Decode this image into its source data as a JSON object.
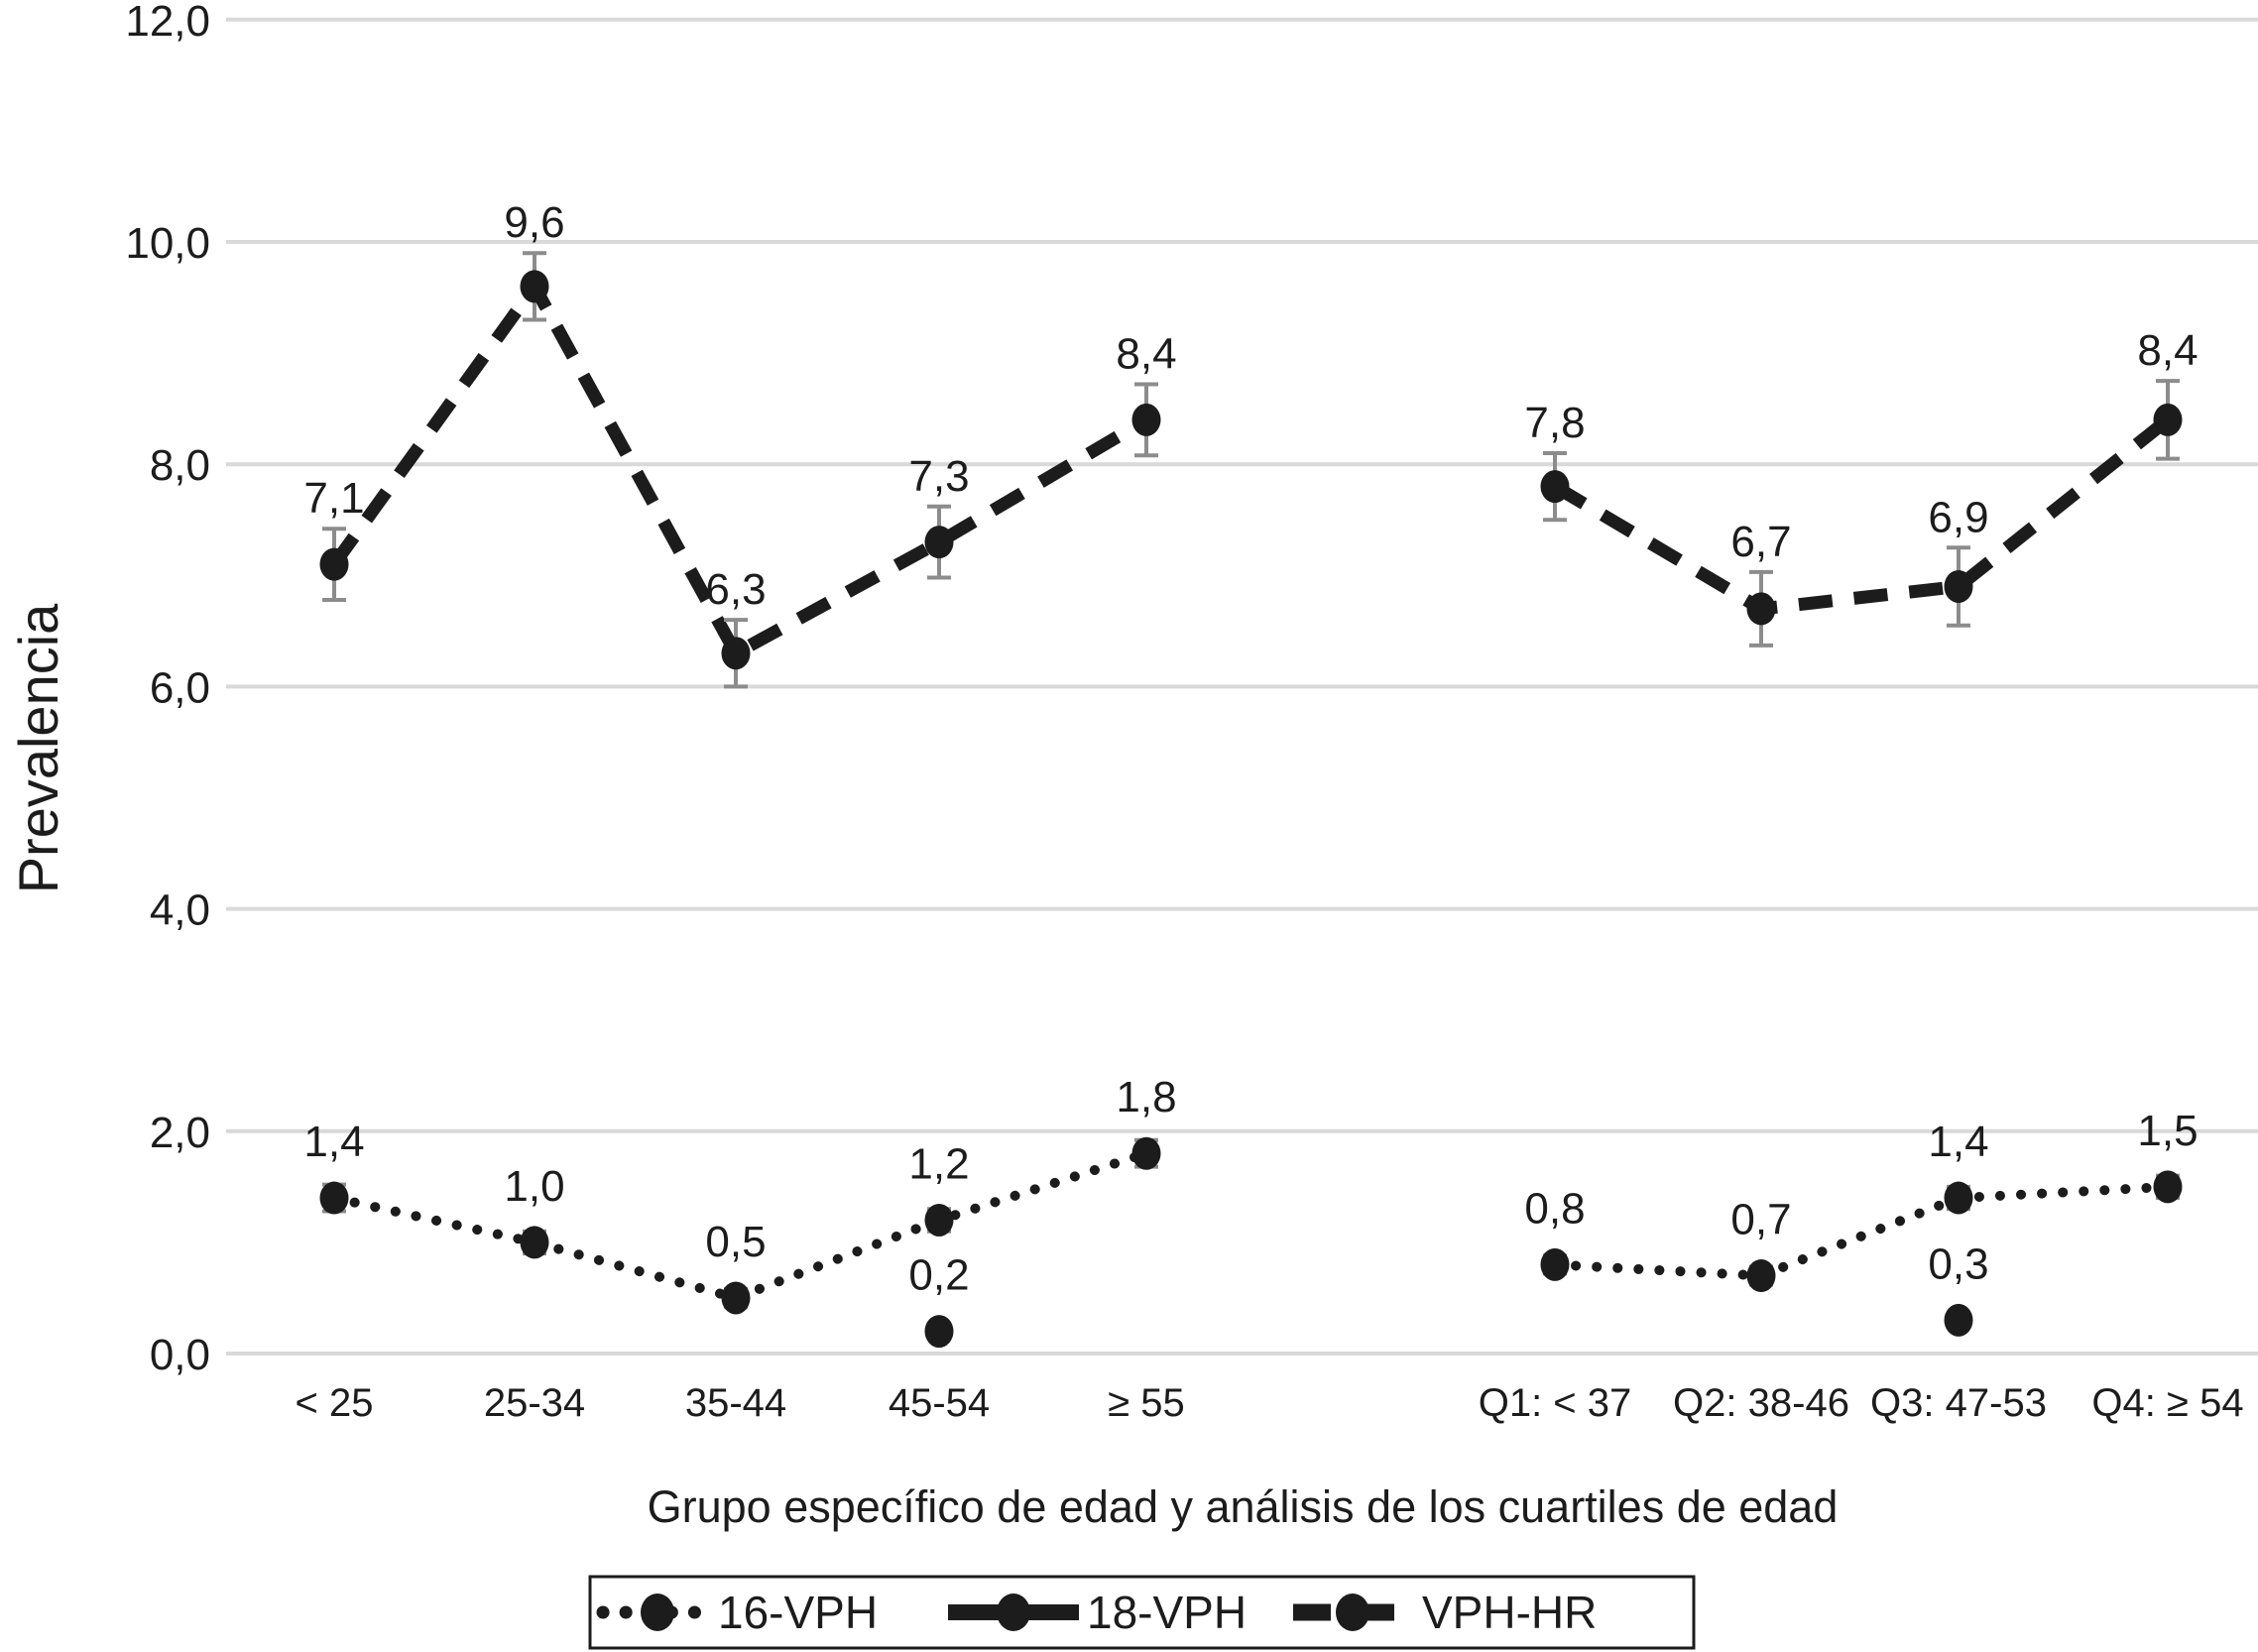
{
  "chart_data": {
    "type": "line",
    "title": "",
    "ylabel": "Prevalencia",
    "xlabel": "Grupo específico de edad y análisis de los cuartiles de edad",
    "ylim": [
      0,
      12
    ],
    "grid": true,
    "legend_position": "bottom",
    "yticks": [
      {
        "value": 0,
        "label": "0,0"
      },
      {
        "value": 2,
        "label": "2,0"
      },
      {
        "value": 4,
        "label": "4,0"
      },
      {
        "value": 6,
        "label": "6,0"
      },
      {
        "value": 8,
        "label": "8,0"
      },
      {
        "value": 10,
        "label": "10,0"
      },
      {
        "value": 12,
        "label": "12,0"
      }
    ],
    "panels": [
      {
        "name": "age-groups",
        "categories": [
          "< 25",
          "25-34",
          "35-44",
          "45-54",
          "≥ 55"
        ]
      },
      {
        "name": "age-quartiles",
        "categories": [
          "Q1: < 37",
          "Q2: 38-46",
          "Q3: 47-53",
          "Q4: ≥ 54"
        ]
      }
    ],
    "series": [
      {
        "name": "16-VPH",
        "style": "dotted",
        "panels": [
          {
            "values": [
              1.4,
              1.0,
              0.5,
              1.2,
              1.8
            ],
            "labels": [
              "1,4",
              "1,0",
              "0,5",
              "1,2",
              "1,8"
            ],
            "errors": [
              0.12,
              0.1,
              0.08,
              0.1,
              0.12
            ]
          },
          {
            "values": [
              0.8,
              0.7,
              1.4,
              1.5
            ],
            "labels": [
              "0,8",
              "0,7",
              "1,4",
              "1,5"
            ],
            "errors": [
              0.08,
              0.08,
              0.1,
              0.1
            ]
          }
        ]
      },
      {
        "name": "18-VPH",
        "style": "solid",
        "panels": [
          {
            "values": [
              null,
              null,
              null,
              0.2,
              null
            ],
            "labels": [
              "",
              "",
              "",
              "0,2",
              ""
            ],
            "errors": [
              0,
              0,
              0,
              0,
              0
            ]
          },
          {
            "values": [
              null,
              null,
              0.3,
              null
            ],
            "labels": [
              "",
              "",
              "0,3",
              ""
            ],
            "errors": [
              0,
              0,
              0,
              0
            ]
          }
        ]
      },
      {
        "name": "VPH-HR",
        "style": "dashed",
        "panels": [
          {
            "values": [
              7.1,
              9.6,
              6.3,
              7.3,
              8.4
            ],
            "labels": [
              "7,1",
              "9,6",
              "6,3",
              "7,3",
              "8,4"
            ],
            "errors": [
              0.32,
              0.3,
              0.3,
              0.32,
              0.32
            ]
          },
          {
            "values": [
              7.8,
              6.7,
              6.9,
              8.4
            ],
            "labels": [
              "7,8",
              "6,7",
              "6,9",
              "8,4"
            ],
            "errors": [
              0.3,
              0.33,
              0.35,
              0.35
            ]
          }
        ]
      }
    ],
    "colors": {
      "ink": "#1c1c1c",
      "gridline": "#d9d9d9",
      "error_bar": "#8c8c8c",
      "background": "#ffffff"
    }
  }
}
